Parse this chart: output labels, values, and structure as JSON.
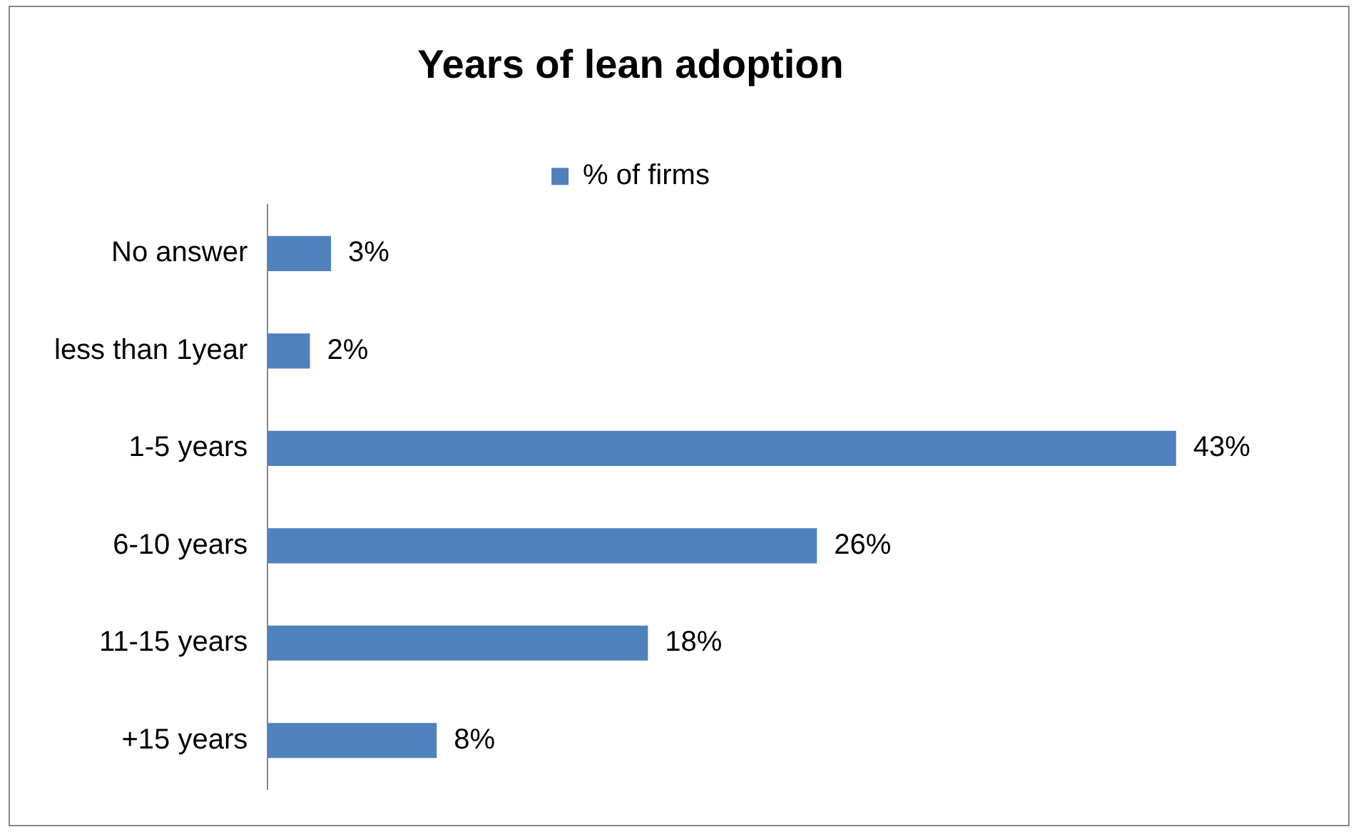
{
  "chart_data": {
    "type": "bar",
    "orientation": "horizontal",
    "title": "Years of lean adoption",
    "categories": [
      "No answer",
      "less than 1year",
      "1-5 years",
      "6-10 years",
      "11-15 years",
      "+15 years"
    ],
    "series": [
      {
        "name": "% of firms",
        "color": "#4f81bd",
        "values": [
          3,
          2,
          43,
          26,
          18,
          8
        ],
        "value_labels": [
          "3%",
          "2%",
          "43%",
          "26%",
          "18%",
          "8%"
        ]
      }
    ],
    "legend": "top"
  }
}
